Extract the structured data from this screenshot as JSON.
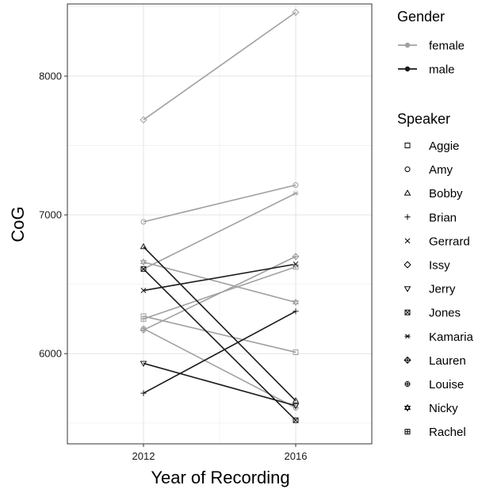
{
  "chart_data": {
    "type": "line",
    "xlabel": "Year of Recording",
    "ylabel": "CoG",
    "x": [
      2012,
      2016
    ],
    "x_ticks": [
      "2012",
      "2016"
    ],
    "y_ticks": [
      "6000",
      "7000",
      "8000"
    ],
    "xlim": [
      2010,
      2018
    ],
    "ylim": [
      5350,
      8520
    ],
    "grid": true,
    "legend_placement": "right",
    "gender_legend": {
      "title": "Gender",
      "entries": [
        {
          "label": "female",
          "color": "#a0a0a0"
        },
        {
          "label": "male",
          "color": "#1a1a1a"
        }
      ]
    },
    "speaker_legend": {
      "title": "Speaker",
      "entries": [
        {
          "label": "Aggie",
          "shape": "square"
        },
        {
          "label": "Amy",
          "shape": "circle"
        },
        {
          "label": "Bobby",
          "shape": "triangle-up"
        },
        {
          "label": "Brian",
          "shape": "plus"
        },
        {
          "label": "Gerrard",
          "shape": "cross"
        },
        {
          "label": "Issy",
          "shape": "diamond"
        },
        {
          "label": "Jerry",
          "shape": "triangle-down"
        },
        {
          "label": "Jones",
          "shape": "square-cross"
        },
        {
          "label": "Kamaria",
          "shape": "asterisk"
        },
        {
          "label": "Lauren",
          "shape": "diamond-plus"
        },
        {
          "label": "Louise",
          "shape": "circle-plus"
        },
        {
          "label": "Nicky",
          "shape": "star-of-david"
        },
        {
          "label": "Rachel",
          "shape": "square-plus"
        }
      ]
    },
    "series": [
      {
        "name": "Aggie",
        "gender": "female",
        "shape": "square",
        "values": [
          6270,
          6010
        ]
      },
      {
        "name": "Amy",
        "gender": "female",
        "shape": "circle",
        "values": [
          6950,
          7215
        ]
      },
      {
        "name": "Bobby",
        "gender": "male",
        "shape": "triangle-up",
        "values": [
          6770,
          5660
        ]
      },
      {
        "name": "Brian",
        "gender": "male",
        "shape": "plus",
        "values": [
          5715,
          6305
        ]
      },
      {
        "name": "Gerrard",
        "gender": "male",
        "shape": "cross",
        "values": [
          6455,
          6645
        ]
      },
      {
        "name": "Issy",
        "gender": "female",
        "shape": "diamond",
        "values": [
          7685,
          8460
        ]
      },
      {
        "name": "Jerry",
        "gender": "male",
        "shape": "triangle-down",
        "values": [
          5930,
          5625
        ]
      },
      {
        "name": "Jones",
        "gender": "male",
        "shape": "square-cross",
        "values": [
          6610,
          5520
        ]
      },
      {
        "name": "Kamaria",
        "gender": "female",
        "shape": "asterisk",
        "values": [
          6610,
          7155
        ]
      },
      {
        "name": "Lauren",
        "gender": "female",
        "shape": "diamond-plus",
        "values": [
          6170,
          6700
        ]
      },
      {
        "name": "Louise",
        "gender": "female",
        "shape": "circle-plus",
        "values": [
          6180,
          5610
        ]
      },
      {
        "name": "Nicky",
        "gender": "female",
        "shape": "star-of-david",
        "values": [
          6660,
          6370
        ]
      },
      {
        "name": "Rachel",
        "gender": "female",
        "shape": "square-plus",
        "values": [
          6250,
          6625
        ]
      }
    ]
  }
}
